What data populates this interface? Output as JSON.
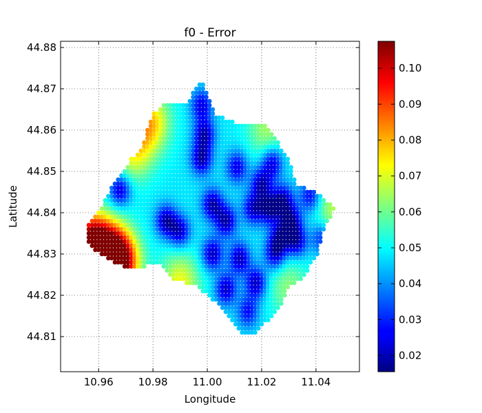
{
  "chart_data": {
    "type": "scatter",
    "title": "f0 - Error",
    "xlabel": "Longitude",
    "ylabel": "Latitude",
    "xlim": [
      10.946,
      11.056
    ],
    "ylim": [
      44.8015,
      44.8815
    ],
    "grid": true,
    "x_ticks": [
      10.96,
      10.98,
      11.0,
      11.02,
      11.04
    ],
    "x_tick_labels": [
      "10.96",
      "10.98",
      "11.00",
      "11.02",
      "11.04"
    ],
    "y_ticks": [
      44.81,
      44.82,
      44.83,
      44.84,
      44.85,
      44.86,
      44.87,
      44.88
    ],
    "y_tick_labels": [
      "44.81",
      "44.82",
      "44.83",
      "44.84",
      "44.85",
      "44.86",
      "44.87",
      "44.88"
    ],
    "colorbar": {
      "colormap": "jet",
      "range": [
        0.0155,
        0.1075
      ],
      "ticks": [
        0.02,
        0.03,
        0.04,
        0.05,
        0.06,
        0.07,
        0.08,
        0.09,
        0.1
      ],
      "tick_labels": [
        "0.02",
        "0.03",
        "0.04",
        "0.05",
        "0.06",
        "0.07",
        "0.08",
        "0.09",
        "0.10"
      ]
    },
    "grid_spacing": {
      "lon": 0.0012,
      "lat": 0.001
    },
    "region_boundary": [
      [
        10.998,
        44.872
      ],
      [
        11.003,
        44.864
      ],
      [
        11.01,
        44.862
      ],
      [
        11.022,
        44.861
      ],
      [
        11.03,
        44.853
      ],
      [
        11.033,
        44.847
      ],
      [
        11.04,
        44.845
      ],
      [
        11.047,
        44.841
      ],
      [
        11.043,
        44.836
      ],
      [
        11.04,
        44.829
      ],
      [
        11.035,
        44.824
      ],
      [
        11.03,
        44.822
      ],
      [
        11.026,
        44.816
      ],
      [
        11.018,
        44.811
      ],
      [
        11.013,
        44.81
      ],
      [
        11.008,
        44.815
      ],
      [
        11.0,
        44.82
      ],
      [
        10.996,
        44.822
      ],
      [
        10.987,
        44.824
      ],
      [
        10.982,
        44.828
      ],
      [
        10.973,
        44.826
      ],
      [
        10.965,
        44.828
      ],
      [
        10.96,
        44.83
      ],
      [
        10.956,
        44.833
      ],
      [
        10.956,
        44.837
      ],
      [
        10.961,
        44.841
      ],
      [
        10.965,
        44.847
      ],
      [
        10.972,
        44.853
      ],
      [
        10.976,
        44.856
      ],
      [
        10.98,
        44.864
      ],
      [
        10.984,
        44.866
      ],
      [
        10.993,
        44.866
      ],
      [
        10.995,
        44.87
      ]
    ],
    "error_field": {
      "baseline": 0.048,
      "minima": [
        {
          "lon": 10.968,
          "lat": 44.8455,
          "value": 0.022
        },
        {
          "lon": 10.985,
          "lat": 44.838,
          "value": 0.02
        },
        {
          "lon": 10.99,
          "lat": 44.8355,
          "value": 0.023
        },
        {
          "lon": 10.998,
          "lat": 44.853,
          "value": 0.02
        },
        {
          "lon": 10.999,
          "lat": 44.859,
          "value": 0.021
        },
        {
          "lon": 10.998,
          "lat": 44.866,
          "value": 0.025
        },
        {
          "lon": 11.002,
          "lat": 44.842,
          "value": 0.02
        },
        {
          "lon": 11.002,
          "lat": 44.83,
          "value": 0.021
        },
        {
          "lon": 11.007,
          "lat": 44.838,
          "value": 0.02
        },
        {
          "lon": 11.007,
          "lat": 44.8215,
          "value": 0.022
        },
        {
          "lon": 11.011,
          "lat": 44.851,
          "value": 0.025
        },
        {
          "lon": 11.012,
          "lat": 44.829,
          "value": 0.021
        },
        {
          "lon": 11.015,
          "lat": 44.816,
          "value": 0.028
        },
        {
          "lon": 11.017,
          "lat": 44.841,
          "value": 0.023
        },
        {
          "lon": 11.018,
          "lat": 44.823,
          "value": 0.021
        },
        {
          "lon": 11.02,
          "lat": 44.847,
          "value": 0.022
        },
        {
          "lon": 11.024,
          "lat": 44.852,
          "value": 0.023
        },
        {
          "lon": 11.023,
          "lat": 44.841,
          "value": 0.02
        },
        {
          "lon": 11.025,
          "lat": 44.83,
          "value": 0.023
        },
        {
          "lon": 11.027,
          "lat": 44.834,
          "value": 0.022
        },
        {
          "lon": 11.028,
          "lat": 44.843,
          "value": 0.021
        },
        {
          "lon": 11.031,
          "lat": 44.838,
          "value": 0.021
        },
        {
          "lon": 11.033,
          "lat": 44.833,
          "value": 0.022
        },
        {
          "lon": 11.038,
          "lat": 44.844,
          "value": 0.026
        },
        {
          "lon": 11.042,
          "lat": 44.834,
          "value": 0.03
        }
      ],
      "maxima": [
        {
          "lon": 10.9575,
          "lat": 44.833,
          "value": 0.108
        },
        {
          "lon": 10.965,
          "lat": 44.83,
          "value": 0.098
        },
        {
          "lon": 10.968,
          "lat": 44.8275,
          "value": 0.092
        },
        {
          "lon": 10.979,
          "lat": 44.862,
          "value": 0.078
        },
        {
          "lon": 10.973,
          "lat": 44.855,
          "value": 0.072
        },
        {
          "lon": 10.99,
          "lat": 44.823,
          "value": 0.072
        },
        {
          "lon": 11.047,
          "lat": 44.841,
          "value": 0.066
        },
        {
          "lon": 11.022,
          "lat": 44.8605,
          "value": 0.064
        },
        {
          "lon": 11.03,
          "lat": 44.822,
          "value": 0.062
        }
      ]
    }
  }
}
